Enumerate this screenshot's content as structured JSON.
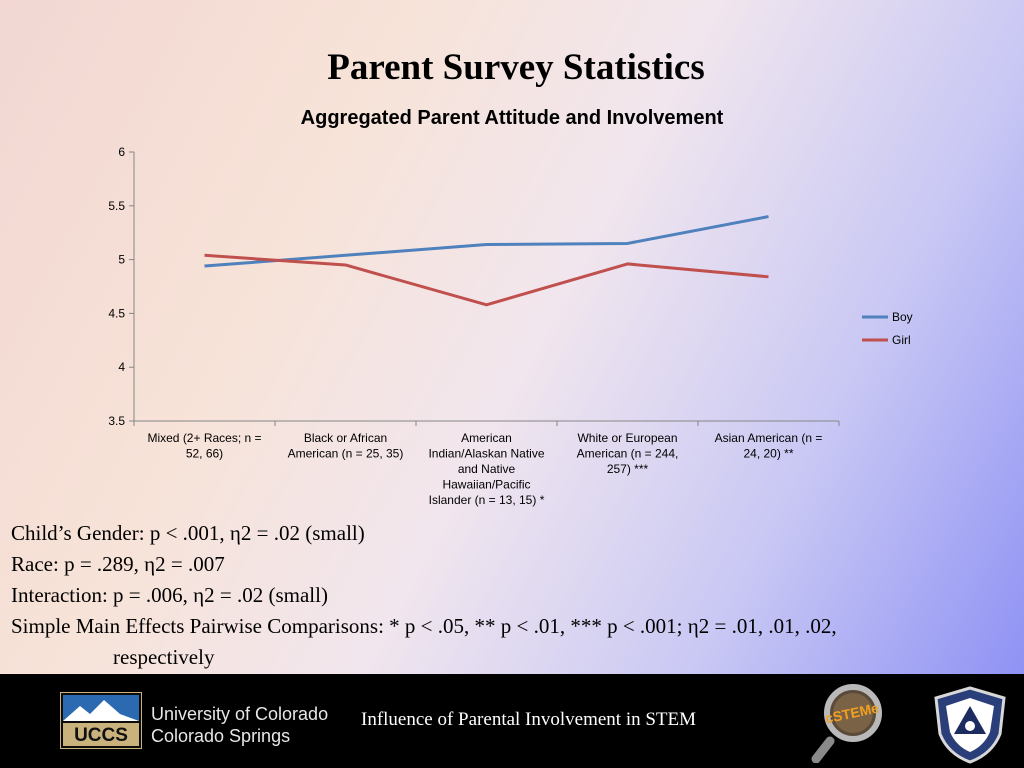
{
  "slide": {
    "title": "Parent Survey Statistics",
    "stats": {
      "gender": {
        "label": "Child’s Gender: ",
        "text": "p < .001, η2 = .02 (small)"
      },
      "race": {
        "label": "Race: ",
        "text": "p = .289, η2 = .007"
      },
      "interaction": {
        "label": "Interaction: ",
        "text": "p = .006, η2 = .02 (small)"
      },
      "pairwise": {
        "line1": "Simple Main Effects Pairwise Comparisons: * p < .05, ** p < .01, *** p < .001; η2 = .01, .01, .02,",
        "line2": "respectively"
      }
    }
  },
  "footer": {
    "logo_text": "UCCS",
    "university_line1": "University of Colorado",
    "university_line2": "Colorado Springs",
    "title": "Influence of Parental Involvement in STEM",
    "cstem_logo_text": "cSTEMe"
  },
  "chart_data": {
    "type": "line",
    "title": "Aggregated Parent Attitude and Involvement",
    "categories": [
      [
        "Mixed (2+ Races; n =",
        "52, 66)"
      ],
      [
        "Black or African",
        "American (n = 25, 35)"
      ],
      [
        "American",
        "Indian/Alaskan Native",
        "and Native",
        "Hawaiian/Pacific",
        "Islander (n = 13, 15) *"
      ],
      [
        "White or European",
        "American (n = 244,",
        "257) ***"
      ],
      [
        "Asian American (n =",
        "24, 20) **"
      ]
    ],
    "series": [
      {
        "name": "Boy",
        "color": "#4f81bd",
        "values": [
          4.94,
          5.04,
          5.14,
          5.15,
          5.4
        ]
      },
      {
        "name": "Girl",
        "color": "#c0504d",
        "values": [
          5.04,
          4.95,
          4.58,
          4.96,
          4.84
        ]
      }
    ],
    "ylim": [
      3.5,
      6
    ],
    "yticks": [
      "3.5",
      "4",
      "4.5",
      "5",
      "5.5",
      "6"
    ],
    "grid": false,
    "legend": "right"
  }
}
